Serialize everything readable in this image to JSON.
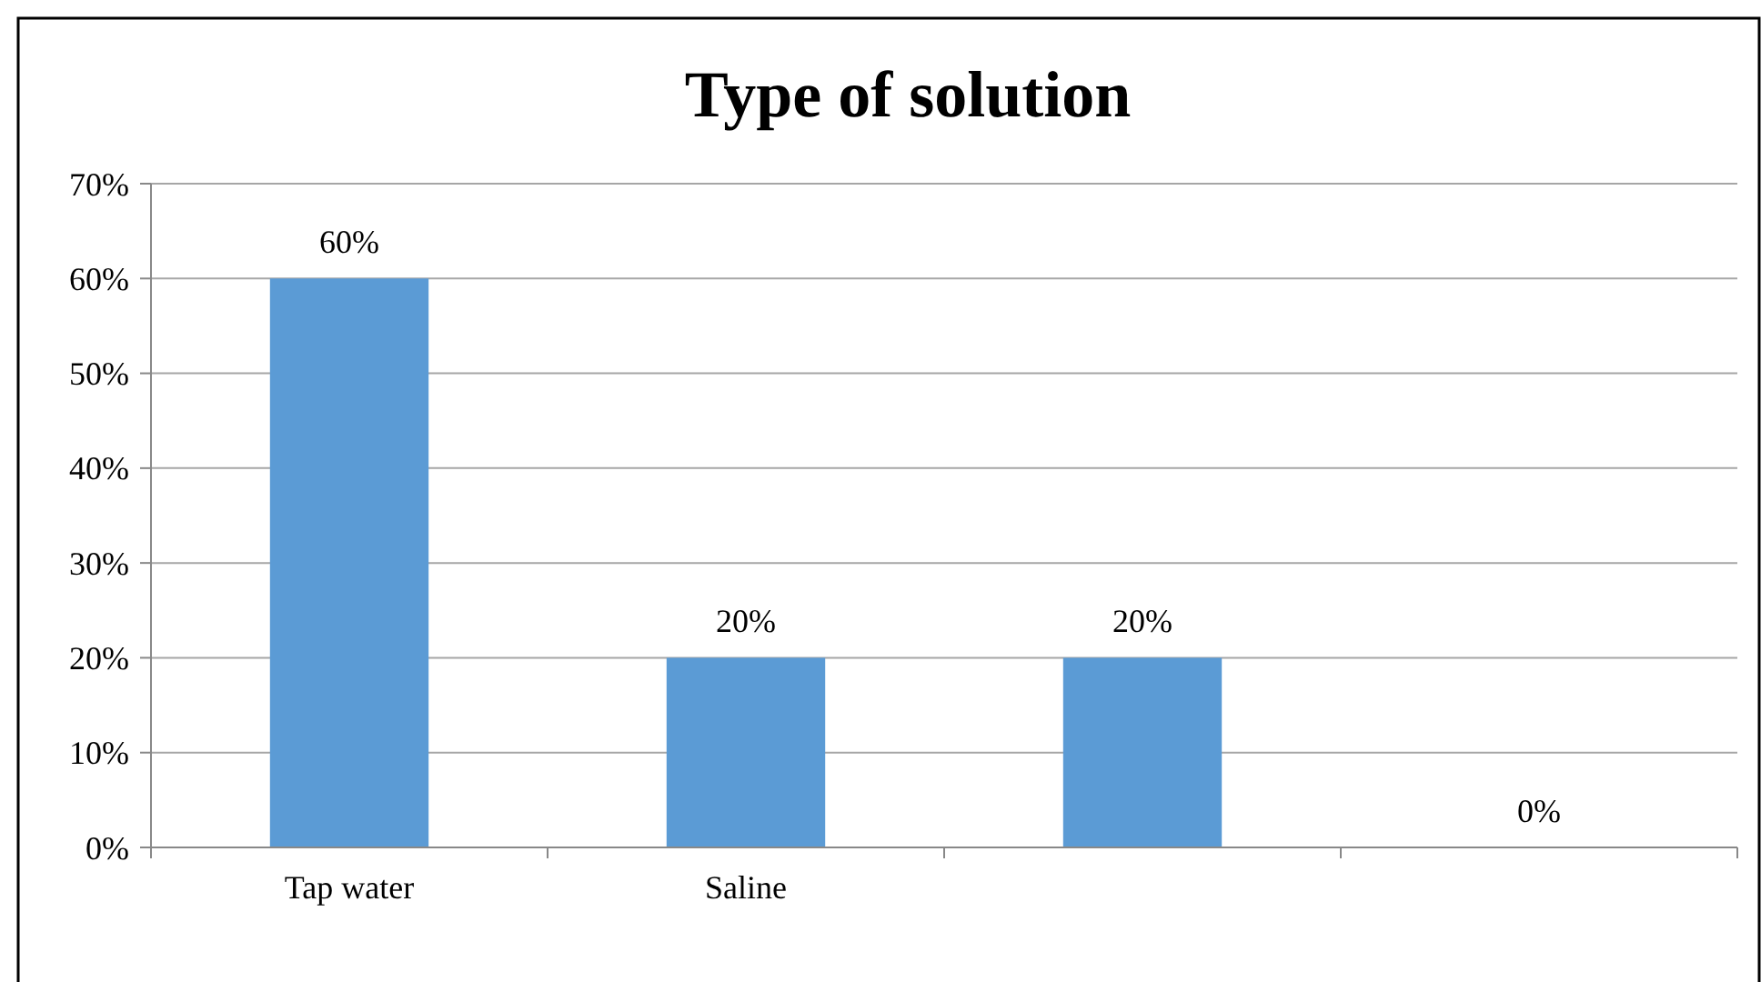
{
  "chart_data": {
    "type": "bar",
    "title": "Type of solution",
    "categories": [
      "Tap water",
      "Saline",
      null,
      null
    ],
    "values": [
      60,
      20,
      20,
      0
    ],
    "color": "#5b9bd5",
    "value_labels": [
      "60%",
      "20%",
      "20%",
      "0%"
    ],
    "ylim": [
      0,
      70
    ],
    "yticks": [
      {
        "value": 0,
        "label": "0%"
      },
      {
        "value": 10,
        "label": "10%"
      },
      {
        "value": 20,
        "label": "20%"
      },
      {
        "value": 30,
        "label": "30%"
      },
      {
        "value": 40,
        "label": "40%"
      },
      {
        "value": 50,
        "label": "50%"
      },
      {
        "value": 60,
        "label": "60%"
      },
      {
        "value": 70,
        "label": "70%"
      }
    ],
    "grid": "y"
  }
}
